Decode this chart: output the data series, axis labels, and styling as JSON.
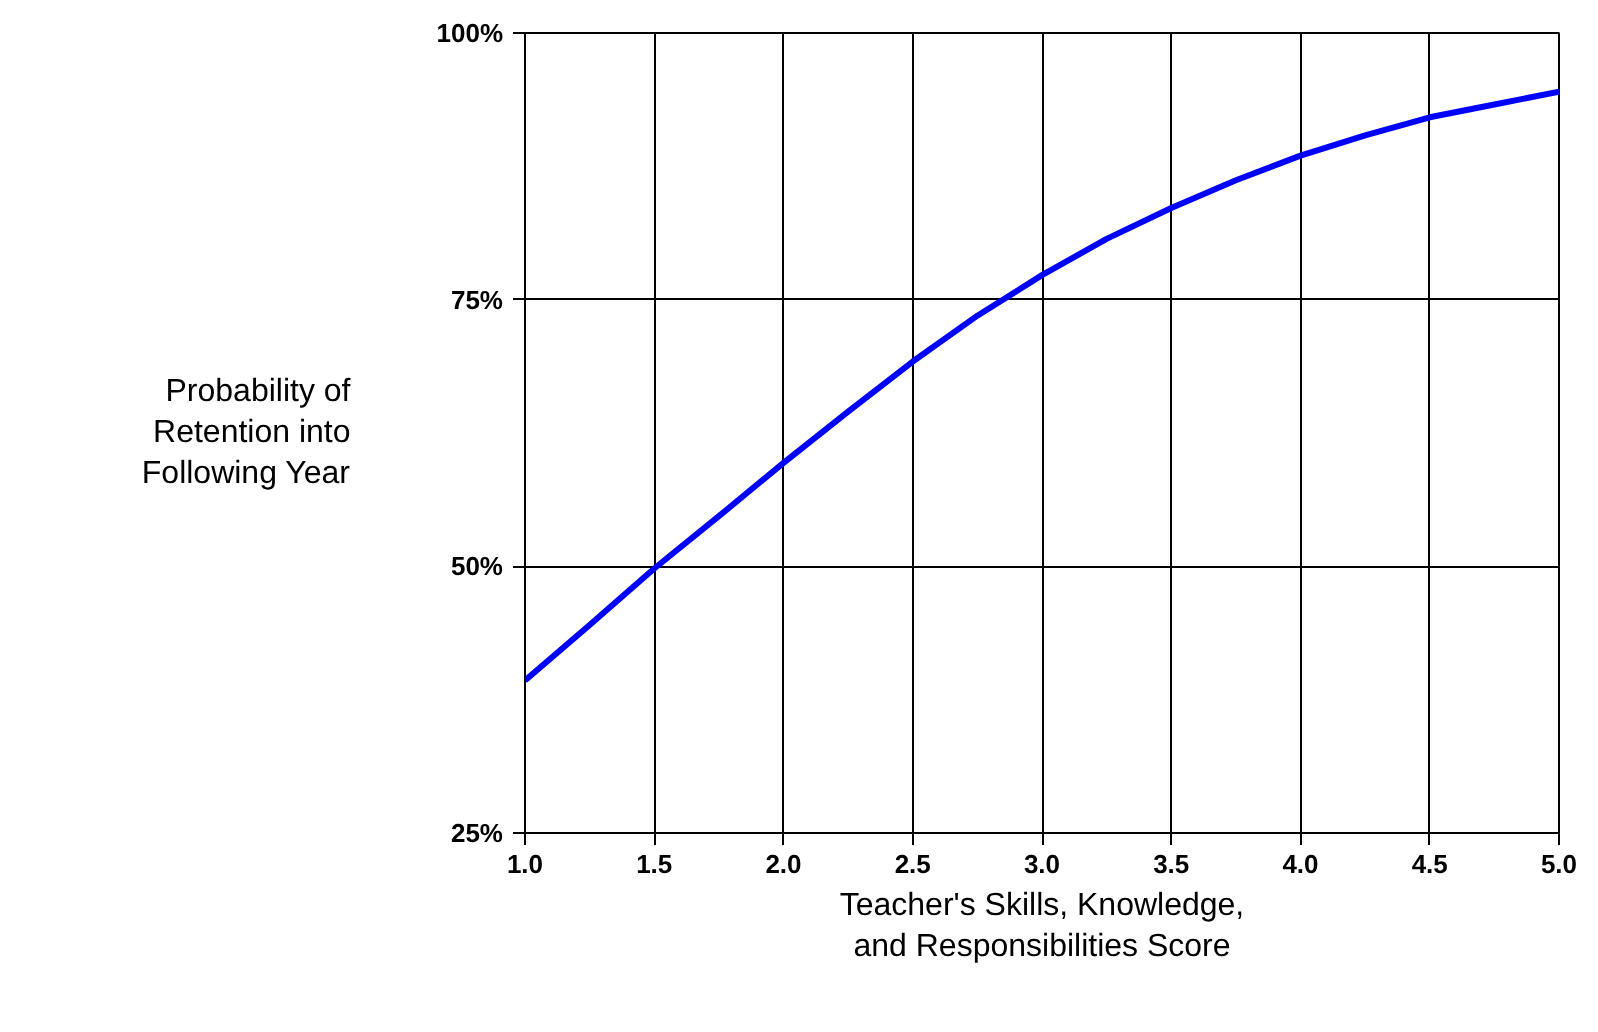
{
  "chart_data": {
    "type": "line",
    "xlabel": "Teacher's Skills, Knowledge, and Responsibilities Score",
    "ylabel": "Probability of Retention into Following Year",
    "x": [
      1.0,
      1.25,
      1.5,
      1.75,
      2.0,
      2.25,
      2.5,
      2.75,
      3.0,
      3.25,
      3.5,
      3.75,
      4.0,
      4.25,
      4.5,
      4.75,
      5.0
    ],
    "series": [
      {
        "color": "#0000ff",
        "values": [
          39.3,
          44.5,
          49.8,
          54.7,
          59.7,
          64.5,
          69.2,
          73.5,
          77.3,
          80.7,
          83.6,
          86.2,
          88.5,
          90.4,
          92.1,
          93.3,
          94.5
        ]
      }
    ],
    "xlim": [
      1.0,
      5.0
    ],
    "ylim": [
      25,
      100
    ],
    "xticks": [
      {
        "value": 1.0,
        "label": "1.0"
      },
      1.5,
      {
        "value": 2.0,
        "label": "2.0"
      },
      2.5,
      {
        "value": 3.0,
        "label": "3.0"
      },
      3.5,
      {
        "value": 4.0,
        "label": "4.0"
      },
      4.5,
      {
        "value": 5.0,
        "label": "5.0"
      }
    ],
    "yticks": [
      {
        "value": 25,
        "label": "25%"
      },
      {
        "value": 50,
        "label": "50%"
      },
      {
        "value": 75,
        "label": "75%"
      },
      {
        "value": 100,
        "label": "100%"
      }
    ],
    "grid": true,
    "marker": "none",
    "line_style": "solid"
  }
}
